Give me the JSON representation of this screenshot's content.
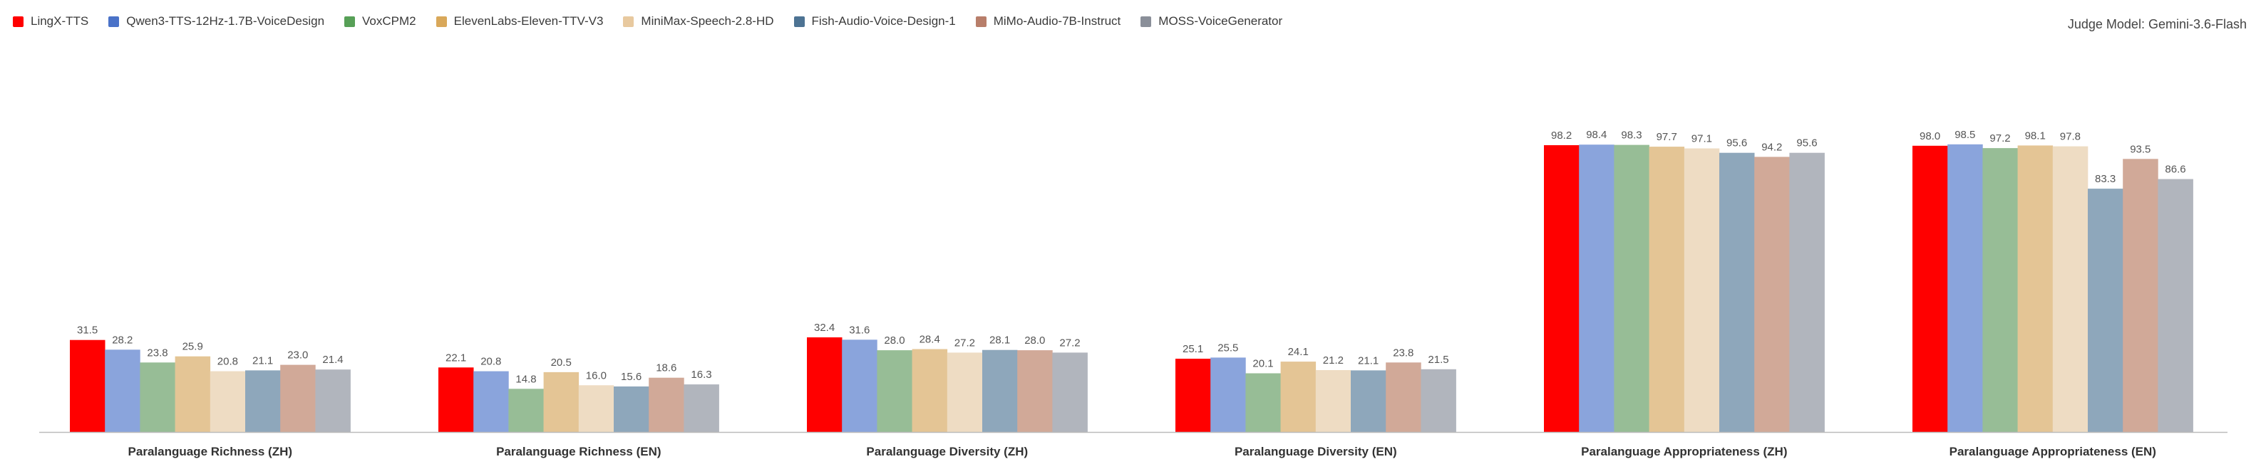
{
  "judge_label": "Judge Model: Gemini-3.6-Flash",
  "chart_data": {
    "type": "bar",
    "title": "",
    "xlabel": "",
    "ylabel": "",
    "ylim": [
      0,
      100
    ],
    "grid": false,
    "legend_position": "top-left",
    "categories": [
      "Paralanguage Richness (ZH)",
      "Paralanguage Richness (EN)",
      "Paralanguage Diversity (ZH)",
      "Paralanguage Diversity (EN)",
      "Paralanguage Appropriateness (ZH)",
      "Paralanguage Appropriateness (EN)"
    ],
    "series": [
      {
        "name": "LingX-TTS",
        "color": "#ff0000",
        "values": [
          31.5,
          22.1,
          32.4,
          25.1,
          98.2,
          98.0
        ]
      },
      {
        "name": "Qwen3-TTS-12Hz-1.7B-VoiceDesign",
        "color": "#8aa4dc",
        "legend_color": "#4a72c8",
        "values": [
          28.2,
          20.8,
          31.6,
          25.5,
          98.4,
          98.5
        ]
      },
      {
        "name": "VoxCPM2",
        "color": "#97bd96",
        "legend_color": "#57a057",
        "values": [
          23.8,
          14.8,
          28.0,
          20.1,
          98.3,
          97.2
        ]
      },
      {
        "name": "ElevenLabs-Eleven-TTV-V3",
        "color": "#e4c595",
        "legend_color": "#d9a85a",
        "values": [
          25.9,
          20.5,
          28.4,
          24.1,
          97.7,
          98.1
        ]
      },
      {
        "name": "MiniMax-Speech-2.8-HD",
        "color": "#eedcc3",
        "legend_color": "#e8c99f",
        "values": [
          20.8,
          16.0,
          27.2,
          21.2,
          97.1,
          97.8
        ]
      },
      {
        "name": "Fish-Audio-Voice-Design-1",
        "color": "#8ea7bb",
        "legend_color": "#4d7393",
        "values": [
          21.1,
          15.6,
          28.1,
          21.1,
          95.6,
          83.3
        ]
      },
      {
        "name": "MiMo-Audio-7B-Instruct",
        "color": "#d1a998",
        "legend_color": "#b87e6a",
        "values": [
          23.0,
          18.6,
          28.0,
          23.8,
          94.2,
          93.5
        ]
      },
      {
        "name": "MOSS-VoiceGenerator",
        "color": "#b1b5bd",
        "legend_color": "#8a8f99",
        "values": [
          21.4,
          16.3,
          27.2,
          21.5,
          95.6,
          86.6
        ]
      }
    ]
  }
}
